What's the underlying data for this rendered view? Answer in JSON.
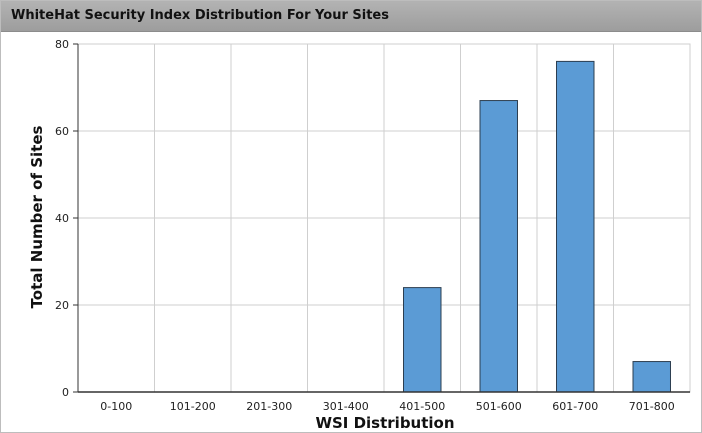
{
  "panel": {
    "title": "WhiteHat Security Index Distribution For Your Sites"
  },
  "chart_data": {
    "type": "bar",
    "categories": [
      "0-100",
      "101-200",
      "201-300",
      "301-400",
      "401-500",
      "501-600",
      "601-700",
      "701-800"
    ],
    "values": [
      0,
      0,
      0,
      0,
      24,
      67,
      76,
      7
    ],
    "xlabel": "WSI Distribution",
    "ylabel": "Total Number of Sites",
    "ylim": [
      0,
      80
    ],
    "yticks": [
      0,
      20,
      40,
      60,
      80
    ],
    "grid": true,
    "bar_color": "#5b9bd5",
    "bar_stroke": "#2c3e50"
  }
}
